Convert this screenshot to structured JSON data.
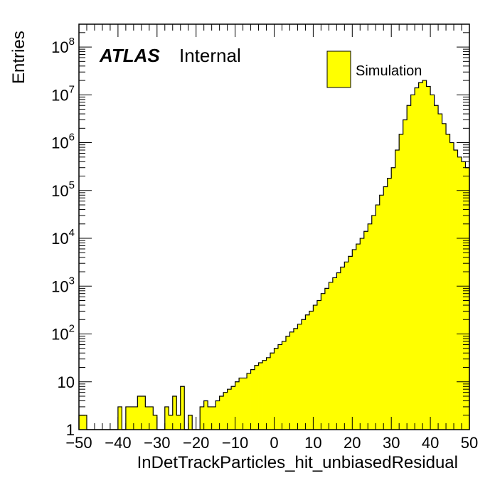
{
  "chart_data": {
    "type": "bar",
    "style": "histogram",
    "xlabel": "InDetTrackParticles_hit_unbiasedResidual",
    "ylabel": "Entries",
    "xlim": [
      -50,
      50
    ],
    "ylim": [
      1,
      300000000
    ],
    "yscale": "log",
    "x_ticks": [
      "−50",
      "−40",
      "−30",
      "−20",
      "−10",
      "0",
      "10",
      "20",
      "30",
      "40",
      "50"
    ],
    "y_ticks": [
      {
        "base": "1",
        "exp": ""
      },
      {
        "base": "10",
        "exp": ""
      },
      {
        "base": "10",
        "exp": "2"
      },
      {
        "base": "10",
        "exp": "3"
      },
      {
        "base": "10",
        "exp": "4"
      },
      {
        "base": "10",
        "exp": "5"
      },
      {
        "base": "10",
        "exp": "6"
      },
      {
        "base": "10",
        "exp": "7"
      },
      {
        "base": "10",
        "exp": "8"
      }
    ],
    "bin_width": 1,
    "bin_start": -50,
    "values": [
      2,
      2,
      1,
      1,
      1,
      1,
      1,
      1,
      1,
      1,
      3,
      1,
      3,
      3,
      3,
      5,
      5,
      3,
      3,
      2,
      1,
      1,
      3,
      2,
      5,
      2,
      8,
      1,
      2,
      1,
      1,
      3,
      4,
      3,
      3,
      4,
      5,
      6,
      7,
      8,
      10,
      12,
      12,
      15,
      18,
      22,
      25,
      28,
      32,
      40,
      50,
      60,
      70,
      90,
      110,
      130,
      160,
      200,
      250,
      300,
      400,
      500,
      700,
      900,
      1200,
      1500,
      1900,
      2500,
      3200,
      4200,
      5800,
      7600,
      10000,
      14000,
      20000,
      30000,
      50000,
      80000,
      120000,
      180000,
      300000,
      700000,
      1500000,
      3000000,
      6000000,
      10000000,
      14000000,
      18000000,
      20000000,
      15000000,
      10000000,
      6000000,
      4000000,
      2500000,
      1500000,
      1000000,
      700000,
      500000,
      400000,
      300000
    ],
    "series": [
      {
        "name": "Simulation",
        "color": "#ffff00"
      }
    ],
    "annotations": {
      "experiment": "ATLAS",
      "status": "Internal"
    },
    "legend_placement": "top-right",
    "grid": false
  },
  "colors": {
    "fill": "#ffff00",
    "line": "#000000",
    "background": "#ffffff"
  }
}
